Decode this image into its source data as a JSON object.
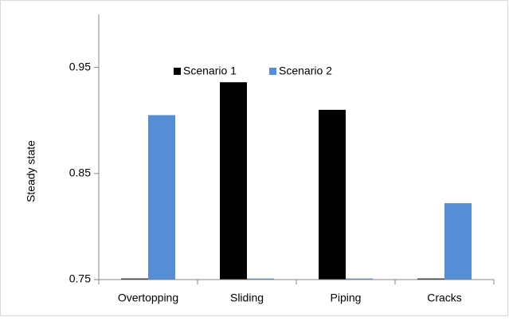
{
  "chart_data": {
    "type": "bar",
    "ylabel": "Steady state",
    "categories": [
      "Overtopping",
      "Sliding",
      "Piping",
      "Cracks"
    ],
    "series": [
      {
        "name": "Scenario 1",
        "color": "#000000",
        "values": [
          0.751,
          0.936,
          0.91,
          0.751
        ]
      },
      {
        "name": "Scenario 2",
        "color": "#558ed5",
        "values": [
          0.905,
          0.751,
          0.751,
          0.822
        ]
      }
    ],
    "ylim": [
      0.75,
      1.0
    ],
    "yticks": [
      0.75,
      0.85,
      0.95
    ],
    "legend": "top"
  }
}
